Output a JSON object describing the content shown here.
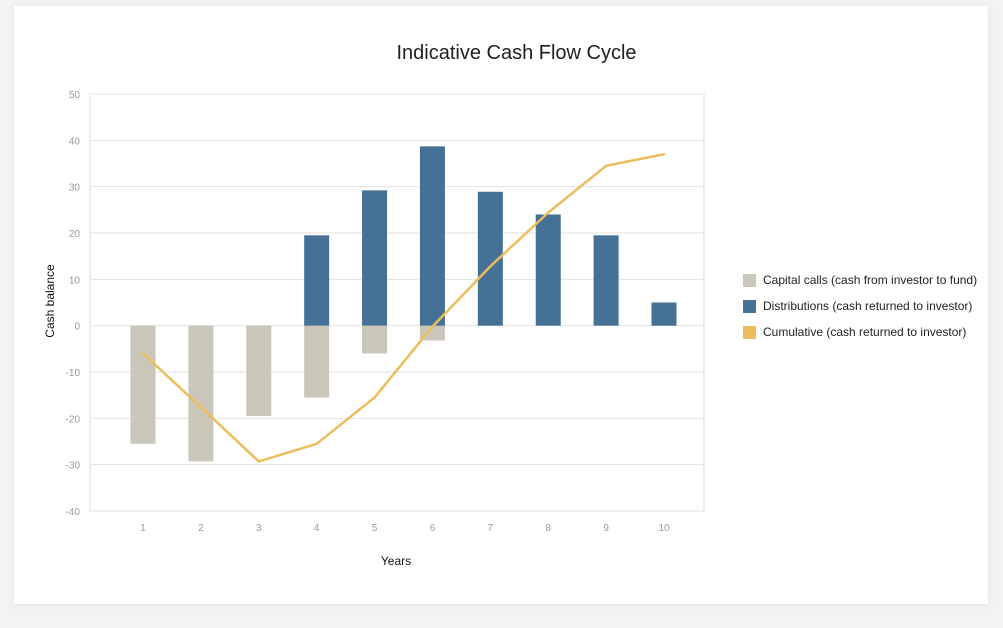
{
  "chart_data": {
    "type": "bar",
    "title": "Indicative Cash Flow Cycle",
    "xlabel": "Years",
    "ylabel": "Cash balance",
    "categories": [
      "1",
      "2",
      "3",
      "4",
      "5",
      "6",
      "7",
      "8",
      "9",
      "10"
    ],
    "ylim": [
      -40,
      50
    ],
    "yticks": [
      "50",
      "40",
      "30",
      "20",
      "10",
      "0",
      "-10",
      "-20",
      "-30",
      "-40"
    ],
    "grid": true,
    "legend_position": "right",
    "series": [
      {
        "name": "Capital calls (cash from investor to fund)",
        "type": "bar",
        "color": "#cbc6ba",
        "values": [
          -25.5,
          -29.3,
          -19.5,
          -15.5,
          -6,
          -3.2,
          0,
          0,
          0,
          0
        ]
      },
      {
        "name": "Distributions (cash returned to investor)",
        "type": "bar",
        "color": "#467196",
        "values": [
          0,
          0,
          0,
          19.5,
          29.2,
          38.7,
          28.9,
          24,
          19.5,
          5
        ]
      },
      {
        "name": "Cumulative (cash returned to investor)",
        "type": "line",
        "color": "#ecbd5b",
        "values": [
          -6,
          -17.6,
          -29.3,
          -25.5,
          -15.5,
          -0.2,
          12.8,
          24.4,
          34.5,
          37
        ]
      }
    ]
  }
}
